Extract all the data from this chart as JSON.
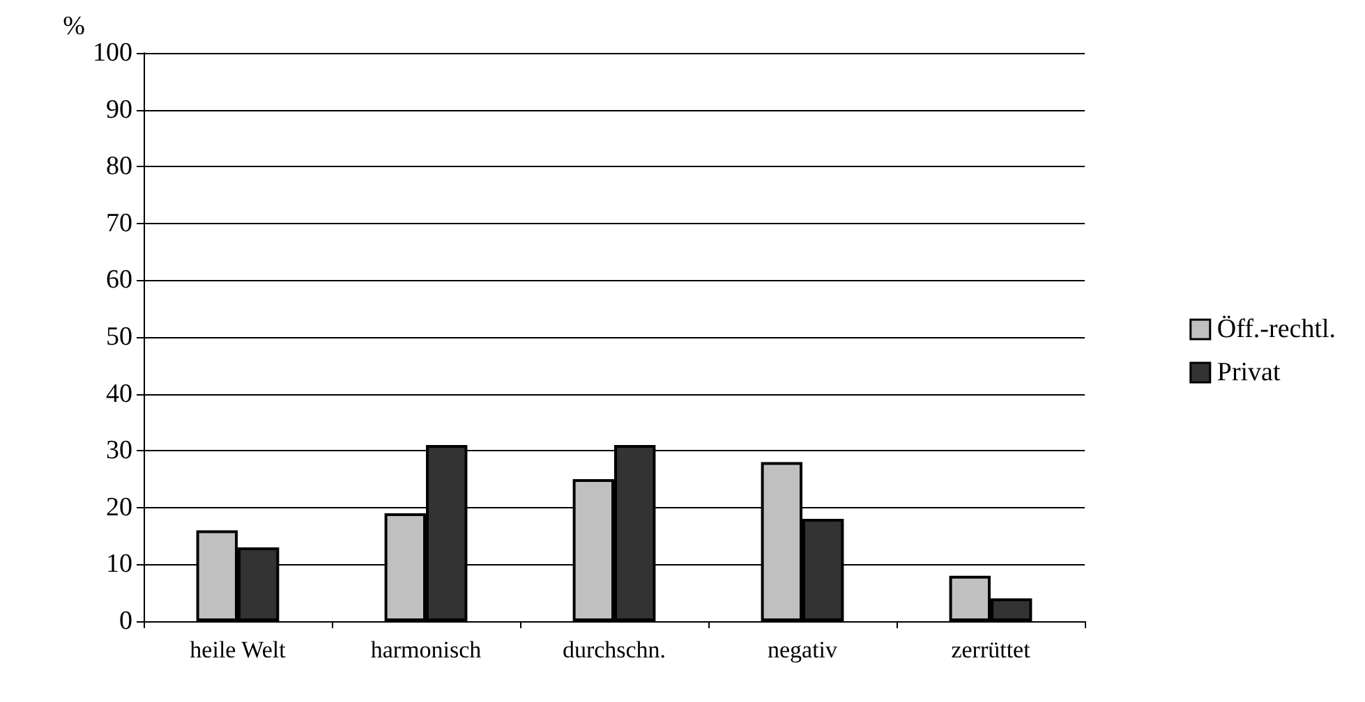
{
  "chart_data": {
    "type": "bar",
    "ylabel": "%",
    "categories": [
      "heile Welt",
      "harmonisch",
      "durchschn.",
      "negativ",
      "zerrüttet"
    ],
    "series": [
      {
        "name": "Öff.-rechtl.",
        "color": "#c0c0c0",
        "values": [
          16,
          19,
          25,
          28,
          8
        ]
      },
      {
        "name": "Privat",
        "color": "#333333",
        "values": [
          13,
          31,
          31,
          18,
          4
        ]
      }
    ],
    "ylim": [
      0,
      100
    ],
    "yticks": [
      0,
      10,
      20,
      30,
      40,
      50,
      60,
      70,
      80,
      90,
      100
    ],
    "grid": "y",
    "legend": "right"
  }
}
